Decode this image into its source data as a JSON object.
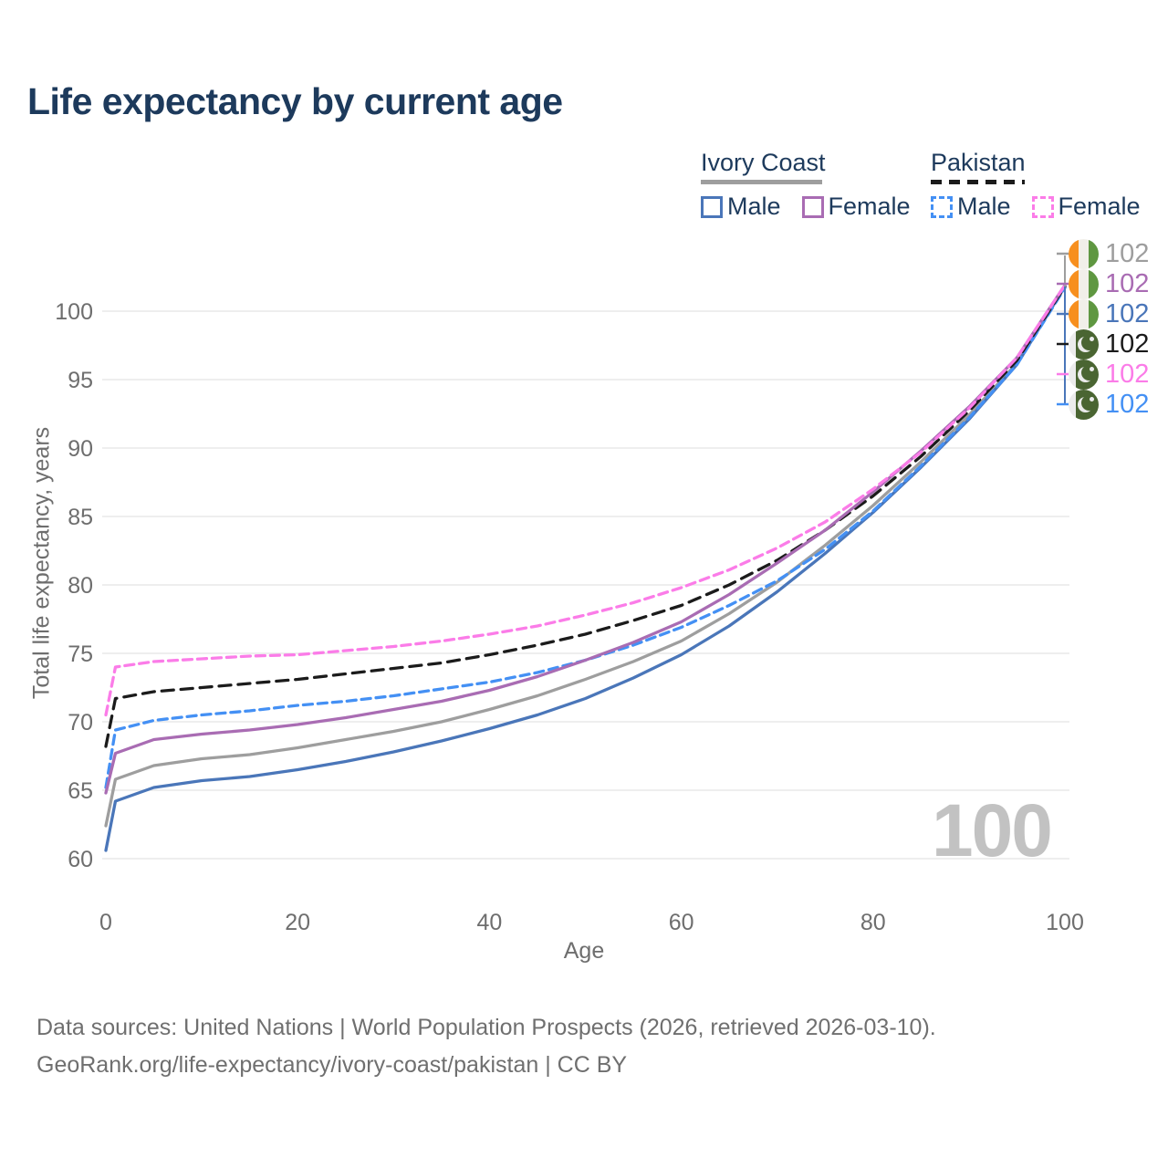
{
  "title": "Life expectancy by current age",
  "y_axis_title": "Total life expectancy, years",
  "x_axis_title": "Age",
  "watermark": "100",
  "legend": {
    "groups": [
      {
        "title": "Ivory Coast",
        "line_style": "solid",
        "underline_color": "#9e9e9e",
        "items": [
          {
            "label": "Male",
            "color": "#4a76b9"
          },
          {
            "label": "Female",
            "color": "#a96cb3"
          }
        ]
      },
      {
        "title": "Pakistan",
        "line_style": "dashed",
        "underline_color": "#1b1b1b",
        "items": [
          {
            "label": "Male",
            "color": "#4490f4"
          },
          {
            "label": "Female",
            "color": "#fb7ce8"
          }
        ]
      }
    ]
  },
  "right_labels": [
    {
      "flag": "ivory-coast-flag-icon",
      "series": "Ivory Coast (both sexes)",
      "value": "102",
      "color": "#9e9e9e"
    },
    {
      "flag": "ivory-coast-flag-icon",
      "series": "Ivory Coast Female",
      "value": "102",
      "color": "#a96cb3"
    },
    {
      "flag": "ivory-coast-flag-icon",
      "series": "Ivory Coast Male",
      "value": "102",
      "color": "#4a76b9"
    },
    {
      "flag": "pakistan-flag-icon",
      "series": "Pakistan (both sexes)",
      "value": "102",
      "color": "#1b1b1b"
    },
    {
      "flag": "pakistan-flag-icon",
      "series": "Pakistan Female",
      "value": "102",
      "color": "#fb7ce8"
    },
    {
      "flag": "pakistan-flag-icon",
      "series": "Pakistan Male",
      "value": "102",
      "color": "#4490f4"
    }
  ],
  "footer": {
    "line1": "Data sources: United Nations | World Population Prospects (2026, retrieved 2026-03-10).",
    "line2": "GeoRank.org/life-expectancy/ivory-coast/pakistan | CC BY"
  },
  "chart_data": {
    "type": "line",
    "title": "Life expectancy by current age",
    "xlabel": "Age",
    "ylabel": "Total life expectancy, years",
    "xlim": [
      0,
      100
    ],
    "ylim": [
      58.5,
      103
    ],
    "xticks": [
      0,
      20,
      40,
      60,
      80,
      100
    ],
    "yticks": [
      60,
      65,
      70,
      75,
      80,
      85,
      90,
      95,
      100
    ],
    "grid": "horizontal",
    "legend_position": "top-right",
    "ages": [
      0,
      1,
      5,
      10,
      15,
      20,
      25,
      30,
      35,
      40,
      45,
      50,
      55,
      60,
      65,
      70,
      75,
      80,
      85,
      90,
      95,
      100
    ],
    "series": [
      {
        "name": "Ivory Coast (both sexes)",
        "color": "#9e9e9e",
        "style": "solid",
        "end_label": "102",
        "values": [
          62.4,
          65.8,
          66.8,
          67.3,
          67.6,
          68.1,
          68.7,
          69.3,
          70.0,
          70.9,
          71.9,
          73.1,
          74.4,
          75.9,
          77.9,
          80.2,
          82.9,
          85.8,
          89.0,
          92.4,
          96.2,
          101.8
        ]
      },
      {
        "name": "Ivory Coast Male",
        "color": "#4a76b9",
        "style": "solid",
        "end_label": "102",
        "values": [
          60.6,
          64.2,
          65.2,
          65.7,
          66.0,
          66.5,
          67.1,
          67.8,
          68.6,
          69.5,
          70.5,
          71.7,
          73.2,
          74.9,
          77.0,
          79.5,
          82.3,
          85.3,
          88.6,
          92.1,
          96.1,
          101.8
        ]
      },
      {
        "name": "Pakistan Male",
        "color": "#4490f4",
        "style": "dashed",
        "end_label": "102",
        "values": [
          65.2,
          69.4,
          70.1,
          70.5,
          70.8,
          71.2,
          71.5,
          71.9,
          72.4,
          72.9,
          73.6,
          74.5,
          75.6,
          76.9,
          78.5,
          80.3,
          82.6,
          85.4,
          88.7,
          92.2,
          96.1,
          101.7
        ]
      },
      {
        "name": "Pakistan (both sexes)",
        "color": "#1b1b1b",
        "style": "dashed",
        "end_label": "102",
        "values": [
          68.2,
          71.7,
          72.2,
          72.5,
          72.8,
          73.1,
          73.5,
          73.9,
          74.3,
          74.9,
          75.6,
          76.4,
          77.4,
          78.5,
          80.0,
          81.8,
          84.0,
          86.5,
          89.4,
          92.7,
          96.4,
          101.8
        ]
      },
      {
        "name": "Ivory Coast Female",
        "color": "#a96cb3",
        "style": "solid",
        "end_label": "102",
        "values": [
          64.8,
          67.7,
          68.7,
          69.1,
          69.4,
          69.8,
          70.3,
          70.9,
          71.5,
          72.3,
          73.3,
          74.5,
          75.8,
          77.3,
          79.3,
          81.6,
          84.0,
          86.8,
          89.8,
          93.0,
          96.6,
          101.9
        ]
      },
      {
        "name": "Pakistan Female",
        "color": "#fb7ce8",
        "style": "dashed",
        "end_label": "102",
        "values": [
          70.5,
          74.0,
          74.4,
          74.6,
          74.8,
          74.9,
          75.2,
          75.5,
          75.9,
          76.4,
          77.0,
          77.8,
          78.7,
          79.8,
          81.1,
          82.7,
          84.6,
          87.0,
          89.7,
          92.9,
          96.6,
          101.9
        ]
      }
    ]
  }
}
